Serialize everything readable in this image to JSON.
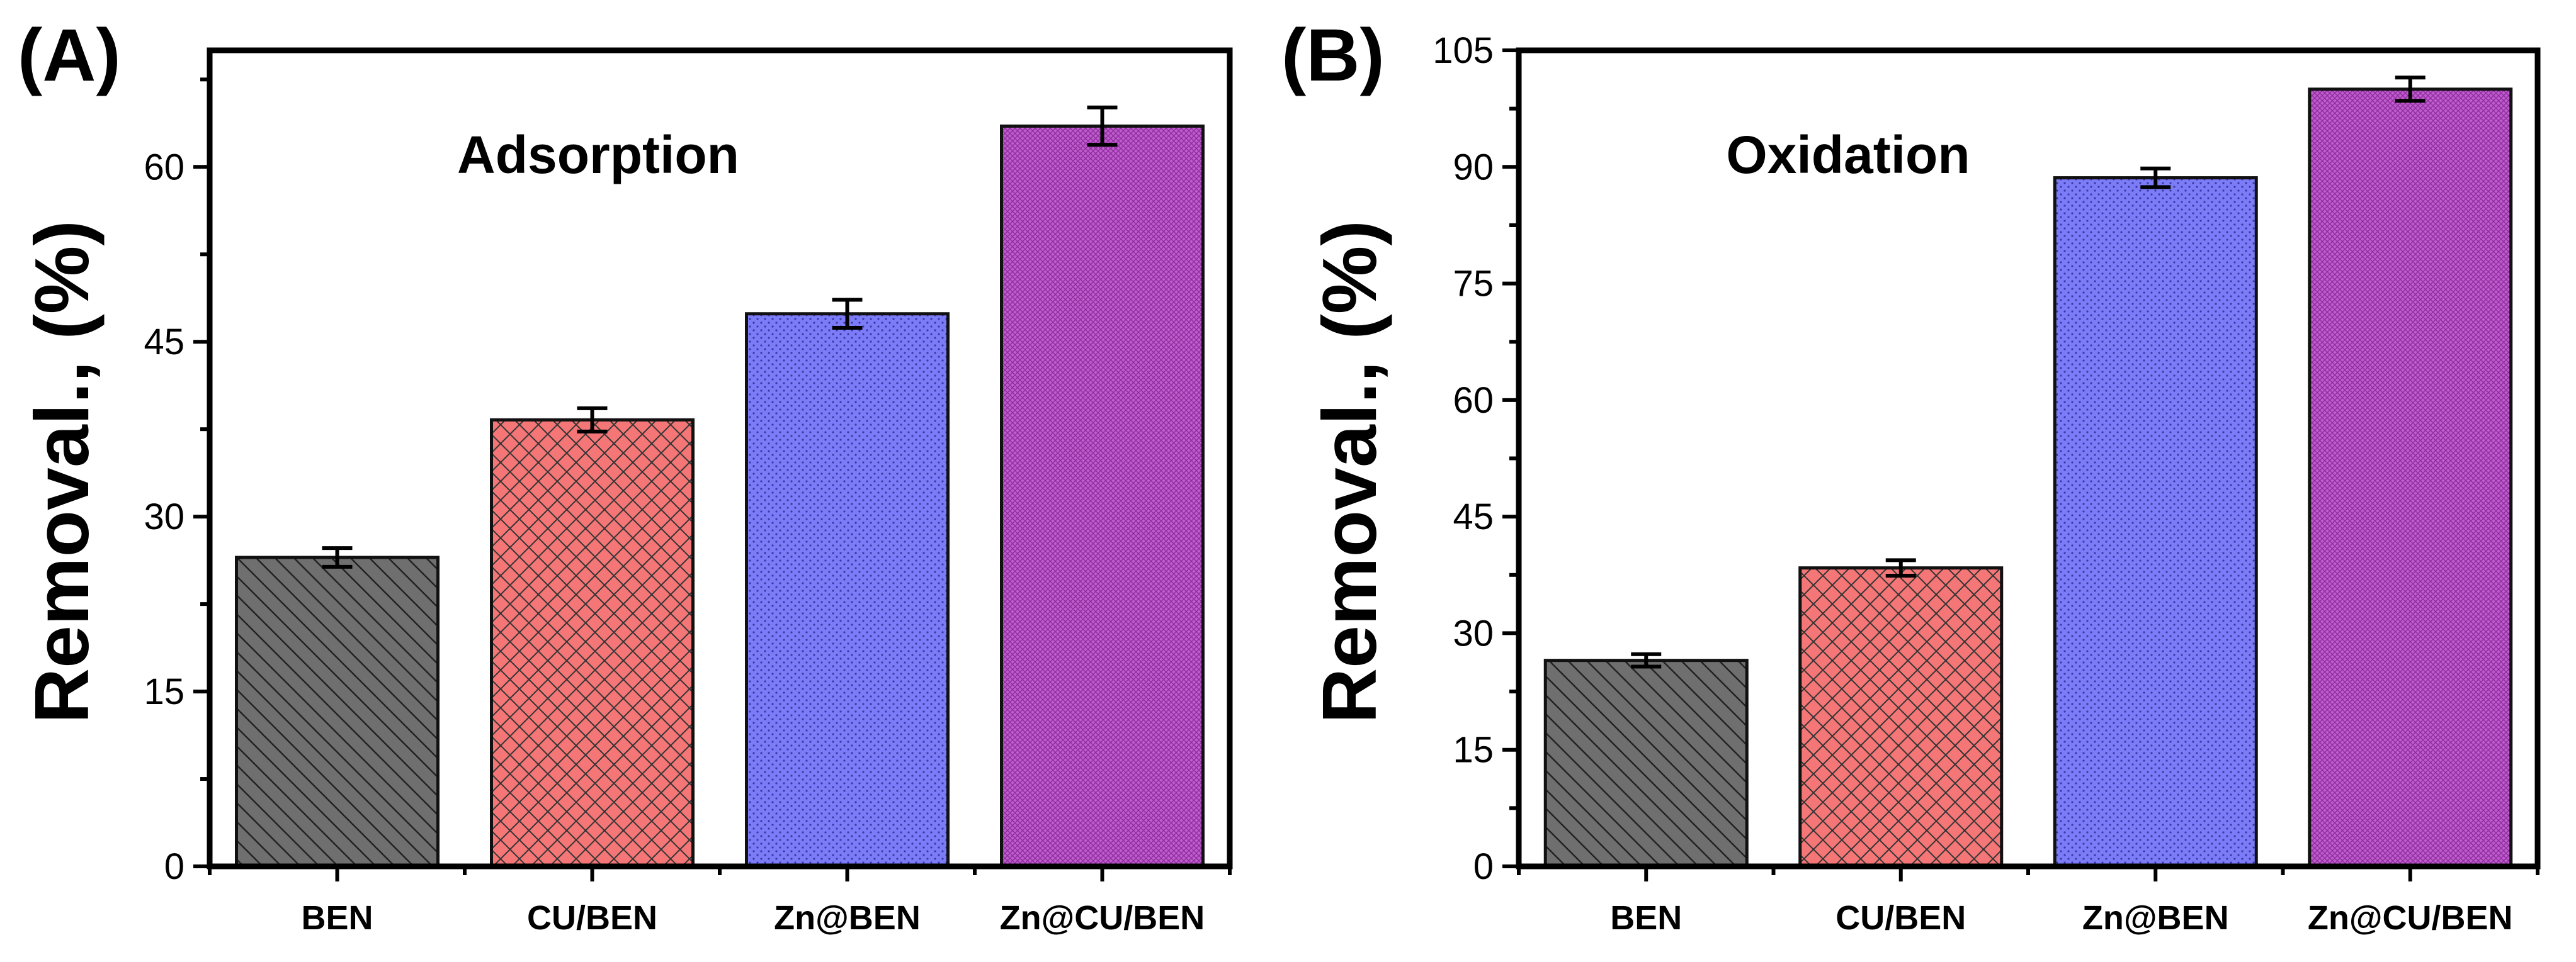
{
  "colors": {
    "BEN": "#6f6f6f",
    "CU/BEN": "#f47676",
    "Zn@BEN": "#7c7cf8",
    "Zn@CU/BEN": "#c25bd0"
  },
  "chart_data": [
    {
      "type": "bar",
      "panel_label": "(A)",
      "title": "Adsorption",
      "xlabel": "",
      "ylabel": "Removal., (%)",
      "ylim": [
        0,
        70
      ],
      "yticks": [
        0,
        15,
        30,
        45,
        60
      ],
      "categories": [
        "BEN",
        "CU/BEN",
        "Zn@BEN",
        "Zn@CU/BEN"
      ],
      "values": [
        26.5,
        38.3,
        47.4,
        63.5
      ],
      "errors": [
        0.8,
        1.0,
        1.2,
        1.6
      ],
      "patterns": [
        "diagonal",
        "crosshatch",
        "dots",
        "dense"
      ]
    },
    {
      "type": "bar",
      "panel_label": "(B)",
      "title": "Oxidation",
      "xlabel": "",
      "ylabel": "Removal., (%)",
      "ylim": [
        0,
        105
      ],
      "yticks": [
        0,
        15,
        30,
        45,
        60,
        75,
        90,
        105
      ],
      "categories": [
        "BEN",
        "CU/BEN",
        "Zn@BEN",
        "Zn@CU/BEN"
      ],
      "values": [
        26.5,
        38.4,
        88.6,
        100.0
      ],
      "errors": [
        0.8,
        1.0,
        1.2,
        1.5
      ],
      "patterns": [
        "diagonal",
        "crosshatch",
        "dots",
        "dense"
      ]
    }
  ]
}
